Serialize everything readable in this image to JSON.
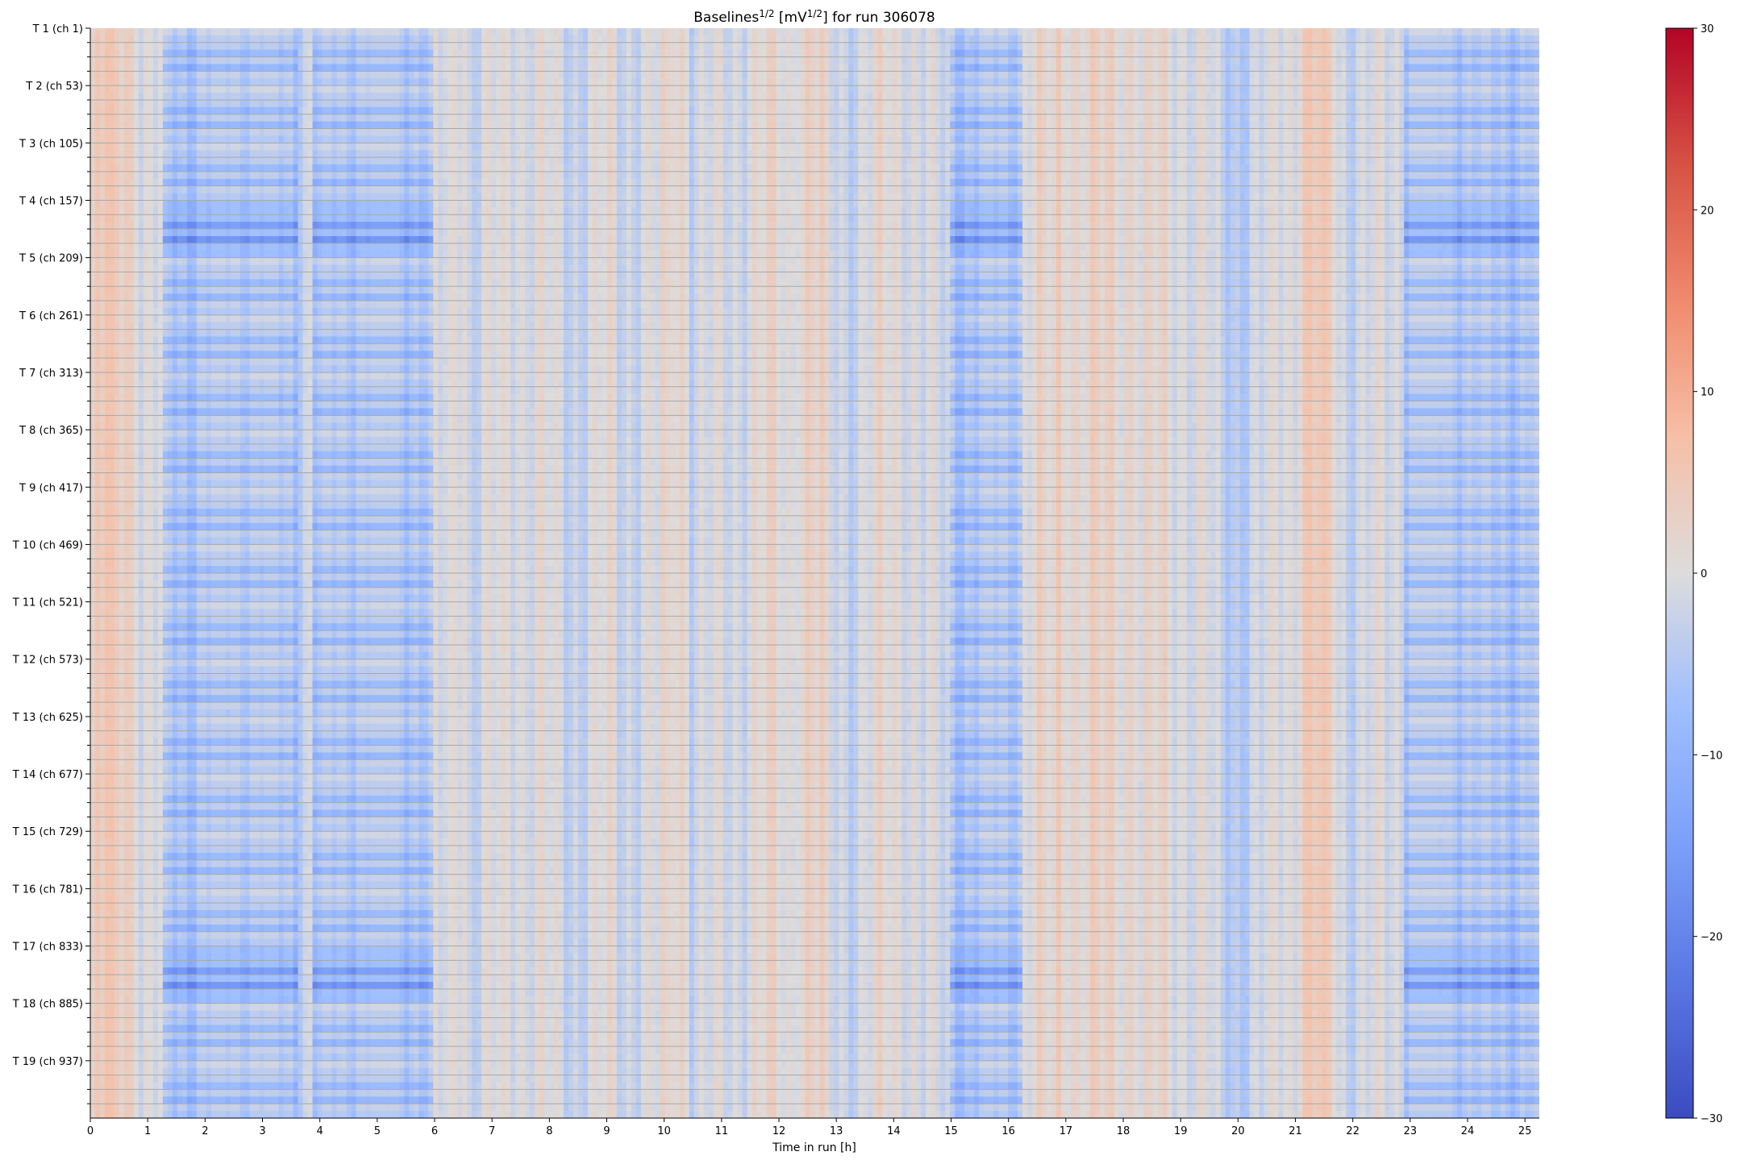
{
  "chart_data": {
    "type": "heatmap",
    "title_parts": [
      "Baselines",
      "1/2",
      " [mV",
      "1/2",
      "] for run 306078"
    ],
    "xlabel": "Time in run [h]",
    "ylabel": "",
    "xlim": [
      0,
      25.25
    ],
    "x_ticks": [
      0,
      1,
      2,
      3,
      4,
      5,
      6,
      7,
      8,
      9,
      10,
      11,
      12,
      13,
      14,
      15,
      16,
      17,
      18,
      19,
      20,
      21,
      22,
      23,
      24,
      25
    ],
    "y_tick_labels": [
      "T 1 (ch 1)",
      "T 2 (ch 53)",
      "T 3 (ch 105)",
      "T 4 (ch 157)",
      "T 5 (ch 209)",
      "T 6 (ch 261)",
      "T 7 (ch 313)",
      "T 8 (ch 365)",
      "T 9 (ch 417)",
      "T 10 (ch 469)",
      "T 11 (ch 521)",
      "T 12 (ch 573)",
      "T 13 (ch 625)",
      "T 14 (ch 677)",
      "T 15 (ch 729)",
      "T 16 (ch 781)",
      "T 17 (ch 833)",
      "T 18 (ch 885)",
      "T 19 (ch 937)"
    ],
    "channels_per_label": 52,
    "n_rows": 988,
    "colormap": "coolwarm",
    "color_range": [
      -30,
      30
    ],
    "colorbar_ticks": [
      30,
      20,
      10,
      0,
      -10,
      -20,
      -30
    ],
    "colorbar_tick_labels": [
      "30",
      "20",
      "10",
      "0",
      "−10",
      "−20",
      "−30"
    ],
    "grid": true,
    "approx_value_range": [
      -20,
      8
    ],
    "low_baseline_time_windows_h": [
      [
        1.3,
        3.6
      ],
      [
        3.9,
        6.0
      ],
      [
        15.0,
        16.25
      ],
      [
        22.9,
        25.25
      ]
    ],
    "strongest_low_channel_groups": [
      "T 4 (ch 157)",
      "T 17 (ch 833)"
    ],
    "elevated_baseline_time_bands_h": [
      [
        0.1,
        0.8
      ],
      [
        6.3,
        6.6
      ],
      [
        10.1,
        10.4
      ],
      [
        12.3,
        12.8
      ],
      [
        16.8,
        18.3
      ],
      [
        21.0,
        21.7
      ]
    ]
  }
}
